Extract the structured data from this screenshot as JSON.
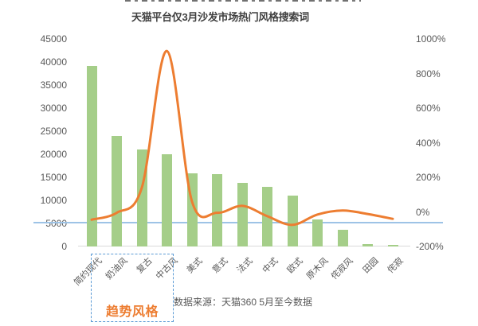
{
  "page": {
    "title": "天猫平台仅3月沙发市场热门风格搜索词",
    "trend_label": "趋势风格",
    "source_note": "数据来源：天猫360 5月至今数据"
  },
  "colors": {
    "bar": "#A5CE89",
    "line": "#ED7D31",
    "reference_line": "#9DC3E6",
    "axis_line": "#D9D9D9",
    "title_text": "#404040",
    "axis_text": "#595959",
    "highlight_box_border": "#5B9BD5",
    "trend_label_text": "#ED7D31"
  },
  "chart_data": {
    "type": "bar",
    "subtype": "bar+line combo, dual axis",
    "title": "天猫平台仅3月沙发市场热门风格搜索词",
    "categories": [
      "简约现代",
      "奶油风",
      "复古",
      "中古风",
      "美式",
      "意式",
      "法式",
      "中式",
      "欧式",
      "原木风",
      "侘寂风",
      "田园",
      "侘寂"
    ],
    "series": [
      {
        "type": "bar",
        "axis": "left",
        "values": [
          39200,
          24000,
          21000,
          20000,
          15800,
          15700,
          13800,
          13000,
          11000,
          5900,
          3600,
          500,
          400
        ]
      },
      {
        "type": "line",
        "axis": "right",
        "values_pct": [
          -45,
          -5,
          140,
          930,
          60,
          -5,
          35,
          -25,
          -75,
          -15,
          8,
          -12,
          -40
        ]
      }
    ],
    "left_axis": {
      "min": 0,
      "max": 45000,
      "step": 5000,
      "tick_labels": [
        "0",
        "5000",
        "10000",
        "15000",
        "20000",
        "25000",
        "30000",
        "35000",
        "40000",
        "45000"
      ]
    },
    "right_axis": {
      "min": -200,
      "max": 1000,
      "step": 200,
      "unit": "%",
      "tick_labels": [
        "-200%",
        "0%",
        "200%",
        "400%",
        "600%",
        "800%",
        "1000%"
      ]
    },
    "reference_line": {
      "left_axis_value": 5000,
      "style": "solid light-blue horizontal line across full chart width"
    },
    "highlight_box": {
      "categories": [
        "奶油风",
        "复古",
        "中古风"
      ],
      "label": "趋势风格",
      "style": "blue dashed rectangle"
    },
    "legend": "none",
    "grid": "off",
    "xlabel_rotation_deg": -45
  }
}
